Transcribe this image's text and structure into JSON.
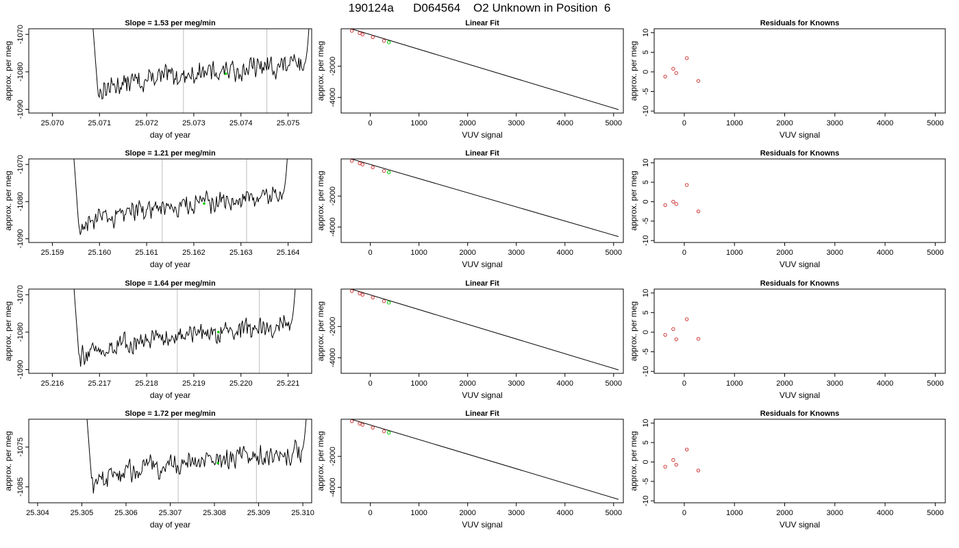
{
  "figure": {
    "title": "190124a      D064564    O2 Unknown in Position  6"
  },
  "chart_data": [
    {
      "type": "line",
      "title": "Slope =  1.53  per meg/min",
      "xlabel": "day of year",
      "ylabel": "approx. per meg",
      "xlim": [
        25.0695,
        25.0755
      ],
      "ylim": [
        -1091.0,
        -1068.5
      ],
      "xticks": [
        "25.070",
        "25.071",
        "25.072",
        "25.073",
        "25.074",
        "25.075"
      ],
      "xtick_values": [
        25.07,
        25.071,
        25.072,
        25.073,
        25.074,
        25.075
      ],
      "yticks": [
        "-1090",
        "-1080",
        "-1070"
      ],
      "ytick_values": [
        -1090,
        -1080,
        -1070
      ],
      "x_start": 25.0708,
      "x_end": 25.07548,
      "start_level": -1058,
      "base_level": -1086,
      "end_level": -1078,
      "end_spike": -1060,
      "vlines": [
        25.07278,
        25.07455
      ],
      "marker": [
        25.07368,
        -1080.5
      ]
    },
    {
      "type": "scatter",
      "title": "Linear Fit",
      "xlabel": "VUV signal",
      "ylabel": "approx. per meg",
      "xlim": [
        -600,
        5200
      ],
      "ylim": [
        -5000,
        400
      ],
      "xticks": [
        "0",
        "1000",
        "2000",
        "3000",
        "4000",
        "5000"
      ],
      "xtick_values": [
        0,
        1000,
        2000,
        3000,
        4000,
        5000
      ],
      "yticks": [
        "-4000",
        "-2000"
      ],
      "ytick_values": [
        -4000,
        -2000
      ],
      "line": [
        [
          -500,
          500
        ],
        [
          5100,
          -4780
        ]
      ],
      "points": [
        [
          -380,
          270
        ],
        [
          -220,
          120
        ],
        [
          -160,
          40
        ],
        [
          50,
          -140
        ],
        [
          280,
          -380
        ]
      ],
      "unknown": [
        [
          380,
          -470
        ]
      ]
    },
    {
      "type": "scatter",
      "title": "Residuals for Knowns",
      "xlabel": "VUV signal",
      "ylabel": "approx. per meg",
      "xlim": [
        -600,
        5200
      ],
      "ylim": [
        -10.5,
        11
      ],
      "xticks": [
        "0",
        "1000",
        "2000",
        "3000",
        "4000",
        "5000"
      ],
      "xtick_values": [
        0,
        1000,
        2000,
        3000,
        4000,
        5000
      ],
      "yticks": [
        "-10",
        "-5",
        "0",
        "5",
        "10"
      ],
      "ytick_values": [
        -10,
        -5,
        0,
        5,
        10
      ],
      "points": [
        [
          -380,
          -1.2
        ],
        [
          -220,
          0.8
        ],
        [
          -160,
          -0.3
        ],
        [
          50,
          3.5
        ],
        [
          280,
          -2.3
        ]
      ]
    },
    {
      "type": "line",
      "title": "Slope =  1.21  per meg/min",
      "xlabel": "day of year",
      "ylabel": "approx. per meg",
      "xlim": [
        25.1585,
        25.1645
      ],
      "ylim": [
        -1091.0,
        -1068.5
      ],
      "xticks": [
        "25.159",
        "25.160",
        "25.161",
        "25.162",
        "25.163",
        "25.164"
      ],
      "xtick_values": [
        25.159,
        25.16,
        25.161,
        25.162,
        25.163,
        25.164
      ],
      "yticks": [
        "-1090",
        "-1080",
        "-1070"
      ],
      "ytick_values": [
        -1090,
        -1080,
        -1070
      ],
      "x_start": 25.1594,
      "x_end": 25.16402,
      "start_level": -1058,
      "base_level": -1088,
      "end_level": -1078,
      "end_spike": -1060,
      "vlines": [
        25.16133,
        25.16312
      ],
      "marker": [
        25.16222,
        -1080.5
      ]
    },
    {
      "type": "scatter",
      "title": "Linear Fit",
      "xlabel": "VUV signal",
      "ylabel": "approx. per meg",
      "xlim": [
        -600,
        5200
      ],
      "ylim": [
        -5000,
        400
      ],
      "xticks": [
        "0",
        "1000",
        "2000",
        "3000",
        "4000",
        "5000"
      ],
      "xtick_values": [
        0,
        1000,
        2000,
        3000,
        4000,
        5000
      ],
      "yticks": [
        "-4000",
        "-2000"
      ],
      "ytick_values": [
        -4000,
        -2000
      ],
      "line": [
        [
          -500,
          500
        ],
        [
          5100,
          -4620
        ]
      ],
      "points": [
        [
          -380,
          270
        ],
        [
          -220,
          120
        ],
        [
          -160,
          40
        ],
        [
          50,
          -140
        ],
        [
          280,
          -380
        ]
      ],
      "unknown": [
        [
          380,
          -470
        ]
      ]
    },
    {
      "type": "scatter",
      "title": "Residuals for Knowns",
      "xlabel": "VUV signal",
      "ylabel": "approx. per meg",
      "xlim": [
        -600,
        5200
      ],
      "ylim": [
        -10.5,
        11
      ],
      "xticks": [
        "0",
        "1000",
        "2000",
        "3000",
        "4000",
        "5000"
      ],
      "xtick_values": [
        0,
        1000,
        2000,
        3000,
        4000,
        5000
      ],
      "yticks": [
        "-10",
        "-5",
        "0",
        "5",
        "10"
      ],
      "ytick_values": [
        -10,
        -5,
        0,
        5,
        10
      ],
      "points": [
        [
          -380,
          -0.9
        ],
        [
          -220,
          0.0
        ],
        [
          -160,
          -0.6
        ],
        [
          50,
          4.3
        ],
        [
          280,
          -2.5
        ]
      ]
    },
    {
      "type": "line",
      "title": "Slope =  1.64  per meg/min",
      "xlabel": "day of year",
      "ylabel": "approx. per meg",
      "xlim": [
        25.2155,
        25.2215
      ],
      "ylim": [
        -1091.0,
        -1068.5
      ],
      "xticks": [
        "25.216",
        "25.217",
        "25.218",
        "25.219",
        "25.220",
        "25.221"
      ],
      "xtick_values": [
        25.216,
        25.217,
        25.218,
        25.219,
        25.22,
        25.221
      ],
      "yticks": [
        "-1090",
        "-1080",
        "-1070"
      ],
      "ytick_values": [
        -1090,
        -1080,
        -1070
      ],
      "x_start": 25.2164,
      "x_end": 25.22119,
      "start_level": -1058,
      "base_level": -1088,
      "end_level": -1078,
      "end_spike": -1060,
      "vlines": [
        25.21865,
        25.22039
      ],
      "marker": [
        25.21952,
        -1080.0
      ]
    },
    {
      "type": "scatter",
      "title": "Linear Fit",
      "xlabel": "VUV signal",
      "ylabel": "approx. per meg",
      "xlim": [
        -600,
        5200
      ],
      "ylim": [
        -5000,
        400
      ],
      "xticks": [
        "0",
        "1000",
        "2000",
        "3000",
        "4000",
        "5000"
      ],
      "xtick_values": [
        0,
        1000,
        2000,
        3000,
        4000,
        5000
      ],
      "yticks": [
        "-4000",
        "-2000"
      ],
      "ytick_values": [
        -4000,
        -2000
      ],
      "line": [
        [
          -500,
          500
        ],
        [
          5100,
          -4780
        ]
      ],
      "points": [
        [
          -380,
          270
        ],
        [
          -220,
          120
        ],
        [
          -160,
          40
        ],
        [
          50,
          -140
        ],
        [
          280,
          -380
        ]
      ],
      "unknown": [
        [
          380,
          -470
        ]
      ]
    },
    {
      "type": "scatter",
      "title": "Residuals for Knowns",
      "xlabel": "VUV signal",
      "ylabel": "approx. per meg",
      "xlim": [
        -600,
        5200
      ],
      "ylim": [
        -10.5,
        11
      ],
      "xticks": [
        "0",
        "1000",
        "2000",
        "3000",
        "4000",
        "5000"
      ],
      "xtick_values": [
        0,
        1000,
        2000,
        3000,
        4000,
        5000
      ],
      "yticks": [
        "-10",
        "-5",
        "0",
        "5",
        "10"
      ],
      "ytick_values": [
        -10,
        -5,
        0,
        5,
        10
      ],
      "points": [
        [
          -380,
          -0.7
        ],
        [
          -220,
          0.8
        ],
        [
          -160,
          -1.8
        ],
        [
          50,
          3.3
        ],
        [
          280,
          -1.7
        ]
      ]
    },
    {
      "type": "line",
      "title": "Slope =  1.72  per meg/min",
      "xlabel": "day of year",
      "ylabel": "approx. per meg",
      "xlim": [
        25.3038,
        25.3102
      ],
      "ylim": [
        -1089.0,
        -1068.0
      ],
      "xticks": [
        "25.304",
        "25.305",
        "25.306",
        "25.307",
        "25.308",
        "25.309",
        "25.310"
      ],
      "xtick_values": [
        25.304,
        25.305,
        25.306,
        25.307,
        25.308,
        25.309,
        25.31
      ],
      "yticks": [
        "-1085",
        "-1075"
      ],
      "ytick_values": [
        -1085,
        -1075
      ],
      "x_start": 25.30505,
      "x_end": 25.31012,
      "start_level": -1058,
      "base_level": -1085,
      "end_level": -1076,
      "end_spike": -1060,
      "vlines": [
        25.30718,
        25.30895
      ],
      "marker": [
        25.30808,
        -1079.0
      ]
    },
    {
      "type": "scatter",
      "title": "Linear Fit",
      "xlabel": "VUV signal",
      "ylabel": "approx. per meg",
      "xlim": [
        -600,
        5200
      ],
      "ylim": [
        -5000,
        400
      ],
      "xticks": [
        "0",
        "1000",
        "2000",
        "3000",
        "4000",
        "5000"
      ],
      "xtick_values": [
        0,
        1000,
        2000,
        3000,
        4000,
        5000
      ],
      "yticks": [
        "-4000",
        "-2000"
      ],
      "ytick_values": [
        -4000,
        -2000
      ],
      "line": [
        [
          -500,
          500
        ],
        [
          5100,
          -4780
        ]
      ],
      "points": [
        [
          -380,
          270
        ],
        [
          -220,
          120
        ],
        [
          -160,
          40
        ],
        [
          50,
          -140
        ],
        [
          280,
          -380
        ]
      ],
      "unknown": [
        [
          380,
          -470
        ]
      ]
    },
    {
      "type": "scatter",
      "title": "Residuals for Knowns",
      "xlabel": "VUV signal",
      "ylabel": "approx. per meg",
      "xlim": [
        -600,
        5200
      ],
      "ylim": [
        -10.5,
        11
      ],
      "xticks": [
        "0",
        "1000",
        "2000",
        "3000",
        "4000",
        "5000"
      ],
      "xtick_values": [
        0,
        1000,
        2000,
        3000,
        4000,
        5000
      ],
      "yticks": [
        "-10",
        "-5",
        "0",
        "5",
        "10"
      ],
      "ytick_values": [
        -10,
        -5,
        0,
        5,
        10
      ],
      "points": [
        [
          -380,
          -1.2
        ],
        [
          -220,
          0.5
        ],
        [
          -160,
          -0.7
        ],
        [
          50,
          3.2
        ],
        [
          280,
          -2.2
        ]
      ]
    }
  ],
  "colors": {
    "line": "#000000",
    "vline": "#bebebe",
    "known_point": "#cc2222",
    "unknown_point": "#00cc00"
  }
}
